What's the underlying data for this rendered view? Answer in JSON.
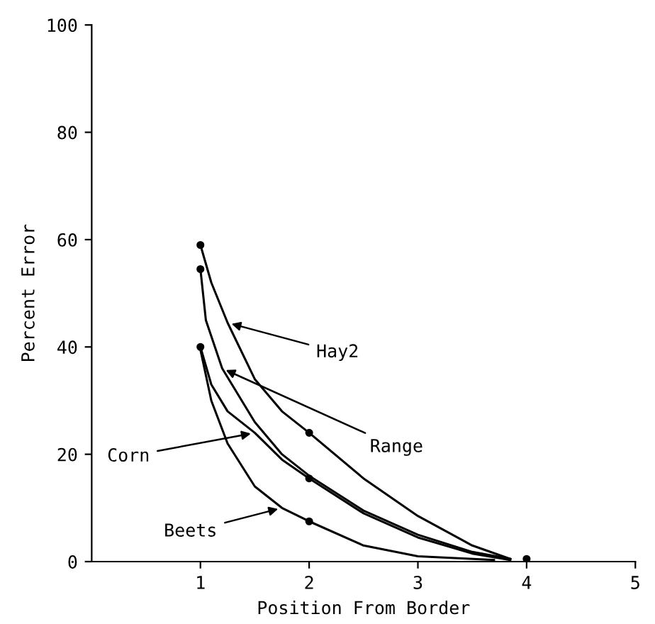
{
  "chart_data": {
    "type": "line",
    "xlabel": "Position From Border",
    "ylabel": "Percent Error",
    "xlim": [
      0,
      5
    ],
    "xticks": [
      1,
      2,
      3,
      4,
      5
    ],
    "ylim": [
      0,
      100
    ],
    "yticks": [
      0,
      20,
      40,
      60,
      80,
      100
    ],
    "grid": false,
    "legend": false,
    "line_style": "solid",
    "series": [
      {
        "color": "#000000",
        "x": [
          1,
          1.1,
          1.25,
          1.5,
          1.75,
          2,
          2.5,
          3,
          3.5,
          3.85
        ],
        "values": [
          59,
          52,
          44.5,
          34,
          28,
          24,
          15.5,
          8.5,
          3,
          0.5
        ]
      },
      {
        "color": "#000000",
        "x": [
          1,
          1.05,
          1.2,
          1.5,
          1.75,
          2,
          2.5,
          3,
          3.5,
          3.85
        ],
        "values": [
          54.5,
          45,
          36,
          26,
          20,
          16,
          9.5,
          5,
          1.8,
          0.5
        ]
      },
      {
        "color": "#000000",
        "x": [
          1,
          1.1,
          1.25,
          1.5,
          1.75,
          2,
          2.5,
          3,
          3.5,
          3.85
        ],
        "values": [
          40,
          33,
          28,
          24,
          19,
          15.5,
          9,
          4.5,
          1.5,
          0.3
        ]
      },
      {
        "color": "#000000",
        "x": [
          1,
          1.1,
          1.25,
          1.5,
          1.75,
          2,
          2.5,
          3,
          3.7
        ],
        "values": [
          39.5,
          30,
          22,
          14,
          10,
          7.5,
          3,
          1,
          0.3
        ]
      },
      {
        "type": "scatter",
        "marker": "circle",
        "color": "#000000",
        "x": [
          1,
          1,
          1,
          2,
          2,
          2,
          4
        ],
        "values": [
          59,
          54.5,
          40,
          24,
          15.5,
          7.5,
          0.5
        ]
      }
    ],
    "annotations": [
      {
        "text": "Hay2",
        "x": 1.25,
        "y": 44.5
      },
      {
        "text": "Range",
        "x": 1.2,
        "y": 36
      },
      {
        "text": "Corn",
        "x": 1.5,
        "y": 24
      },
      {
        "text": "Beets",
        "x": 1.75,
        "y": 10
      }
    ]
  }
}
